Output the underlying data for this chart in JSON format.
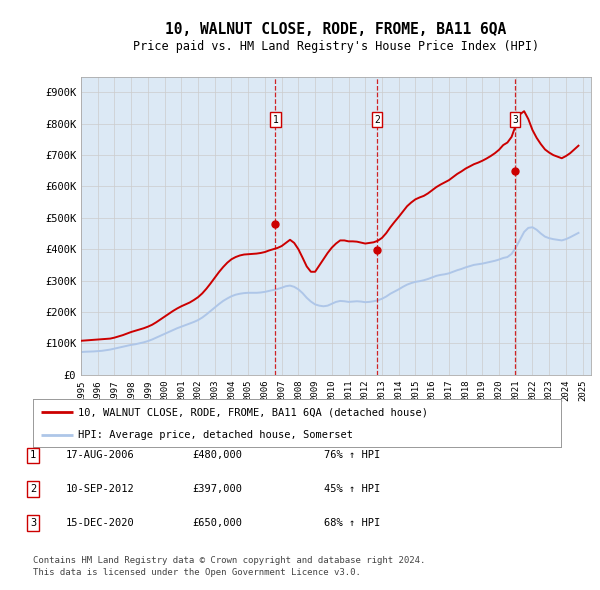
{
  "title": "10, WALNUT CLOSE, RODE, FROME, BA11 6QA",
  "subtitle": "Price paid vs. HM Land Registry's House Price Index (HPI)",
  "xlim_start": 1995.0,
  "xlim_end": 2025.5,
  "ylim_min": 0,
  "ylim_max": 950000,
  "yticks": [
    0,
    100000,
    200000,
    300000,
    400000,
    500000,
    600000,
    700000,
    800000,
    900000
  ],
  "ytick_labels": [
    "£0",
    "£100K",
    "£200K",
    "£300K",
    "£400K",
    "£500K",
    "£600K",
    "£700K",
    "£800K",
    "£900K"
  ],
  "xtick_years": [
    1995,
    1996,
    1997,
    1998,
    1999,
    2000,
    2001,
    2002,
    2003,
    2004,
    2005,
    2006,
    2007,
    2008,
    2009,
    2010,
    2011,
    2012,
    2013,
    2014,
    2015,
    2016,
    2017,
    2018,
    2019,
    2020,
    2021,
    2022,
    2023,
    2024,
    2025
  ],
  "hpi_color": "#aec6e8",
  "price_color": "#cc0000",
  "sale_marker_color": "#cc0000",
  "vline_color": "#cc0000",
  "grid_color": "#cccccc",
  "bg_color": "#dce9f5",
  "plot_bg": "#ffffff",
  "legend_box_color": "#cc0000",
  "sales": [
    {
      "label": "1",
      "year": 2006.625,
      "price": 480000,
      "date_str": "17-AUG-2006",
      "price_str": "£480,000",
      "pct_str": "76% ↑ HPI"
    },
    {
      "label": "2",
      "year": 2012.7,
      "price": 397000,
      "date_str": "10-SEP-2012",
      "price_str": "£397,000",
      "pct_str": "45% ↑ HPI"
    },
    {
      "label": "3",
      "year": 2020.96,
      "price": 650000,
      "date_str": "15-DEC-2020",
      "price_str": "£650,000",
      "pct_str": "68% ↑ HPI"
    }
  ],
  "legend1_label": "10, WALNUT CLOSE, RODE, FROME, BA11 6QA (detached house)",
  "legend2_label": "HPI: Average price, detached house, Somerset",
  "footer": "Contains HM Land Registry data © Crown copyright and database right 2024.\nThis data is licensed under the Open Government Licence v3.0.",
  "hpi_data_x": [
    1995.0,
    1995.25,
    1995.5,
    1995.75,
    1996.0,
    1996.25,
    1996.5,
    1996.75,
    1997.0,
    1997.25,
    1997.5,
    1997.75,
    1998.0,
    1998.25,
    1998.5,
    1998.75,
    1999.0,
    1999.25,
    1999.5,
    1999.75,
    2000.0,
    2000.25,
    2000.5,
    2000.75,
    2001.0,
    2001.25,
    2001.5,
    2001.75,
    2002.0,
    2002.25,
    2002.5,
    2002.75,
    2003.0,
    2003.25,
    2003.5,
    2003.75,
    2004.0,
    2004.25,
    2004.5,
    2004.75,
    2005.0,
    2005.25,
    2005.5,
    2005.75,
    2006.0,
    2006.25,
    2006.5,
    2006.75,
    2007.0,
    2007.25,
    2007.5,
    2007.75,
    2008.0,
    2008.25,
    2008.5,
    2008.75,
    2009.0,
    2009.25,
    2009.5,
    2009.75,
    2010.0,
    2010.25,
    2010.5,
    2010.75,
    2011.0,
    2011.25,
    2011.5,
    2011.75,
    2012.0,
    2012.25,
    2012.5,
    2012.75,
    2013.0,
    2013.25,
    2013.5,
    2013.75,
    2014.0,
    2014.25,
    2014.5,
    2014.75,
    2015.0,
    2015.25,
    2015.5,
    2015.75,
    2016.0,
    2016.25,
    2016.5,
    2016.75,
    2017.0,
    2017.25,
    2017.5,
    2017.75,
    2018.0,
    2018.25,
    2018.5,
    2018.75,
    2019.0,
    2019.25,
    2019.5,
    2019.75,
    2020.0,
    2020.25,
    2020.5,
    2020.75,
    2021.0,
    2021.25,
    2021.5,
    2021.75,
    2022.0,
    2022.25,
    2022.5,
    2022.75,
    2023.0,
    2023.25,
    2023.5,
    2023.75,
    2024.0,
    2024.25,
    2024.5,
    2024.75
  ],
  "hpi_data_y": [
    72000,
    73000,
    73500,
    74000,
    75000,
    76000,
    78000,
    80000,
    83000,
    86000,
    89000,
    92000,
    95000,
    97000,
    100000,
    103000,
    107000,
    112000,
    118000,
    124000,
    130000,
    136000,
    142000,
    148000,
    153000,
    158000,
    163000,
    168000,
    174000,
    182000,
    192000,
    203000,
    214000,
    225000,
    235000,
    243000,
    250000,
    255000,
    258000,
    260000,
    261000,
    261000,
    261000,
    262000,
    264000,
    267000,
    270000,
    273000,
    277000,
    282000,
    284000,
    280000,
    272000,
    260000,
    245000,
    233000,
    224000,
    220000,
    218000,
    220000,
    226000,
    232000,
    235000,
    234000,
    232000,
    233000,
    234000,
    233000,
    231000,
    232000,
    234000,
    237000,
    242000,
    249000,
    258000,
    265000,
    272000,
    280000,
    287000,
    292000,
    296000,
    298000,
    301000,
    305000,
    310000,
    315000,
    318000,
    320000,
    323000,
    328000,
    333000,
    337000,
    342000,
    346000,
    350000,
    352000,
    354000,
    357000,
    360000,
    363000,
    367000,
    372000,
    375000,
    385000,
    405000,
    430000,
    455000,
    468000,
    470000,
    462000,
    450000,
    440000,
    435000,
    432000,
    430000,
    428000,
    432000,
    438000,
    445000,
    452000
  ],
  "price_data_x": [
    1995.0,
    1995.25,
    1995.5,
    1995.75,
    1996.0,
    1996.25,
    1996.5,
    1996.75,
    1997.0,
    1997.25,
    1997.5,
    1997.75,
    1998.0,
    1998.25,
    1998.5,
    1998.75,
    1999.0,
    1999.25,
    1999.5,
    1999.75,
    2000.0,
    2000.25,
    2000.5,
    2000.75,
    2001.0,
    2001.25,
    2001.5,
    2001.75,
    2002.0,
    2002.25,
    2002.5,
    2002.75,
    2003.0,
    2003.25,
    2003.5,
    2003.75,
    2004.0,
    2004.25,
    2004.5,
    2004.75,
    2005.0,
    2005.25,
    2005.5,
    2005.75,
    2006.0,
    2006.25,
    2006.5,
    2006.75,
    2007.0,
    2007.25,
    2007.5,
    2007.75,
    2008.0,
    2008.25,
    2008.5,
    2008.75,
    2009.0,
    2009.25,
    2009.5,
    2009.75,
    2010.0,
    2010.25,
    2010.5,
    2010.75,
    2011.0,
    2011.25,
    2011.5,
    2011.75,
    2012.0,
    2012.25,
    2012.5,
    2012.75,
    2013.0,
    2013.25,
    2013.5,
    2013.75,
    2014.0,
    2014.25,
    2014.5,
    2014.75,
    2015.0,
    2015.25,
    2015.5,
    2015.75,
    2016.0,
    2016.25,
    2016.5,
    2016.75,
    2017.0,
    2017.25,
    2017.5,
    2017.75,
    2018.0,
    2018.25,
    2018.5,
    2018.75,
    2019.0,
    2019.25,
    2019.5,
    2019.75,
    2020.0,
    2020.25,
    2020.5,
    2020.75,
    2021.0,
    2021.25,
    2021.5,
    2021.75,
    2022.0,
    2022.25,
    2022.5,
    2022.75,
    2023.0,
    2023.25,
    2023.5,
    2023.75,
    2024.0,
    2024.25,
    2024.5,
    2024.75
  ],
  "price_data_y": [
    108000,
    109000,
    110000,
    111000,
    112000,
    113000,
    114000,
    115000,
    118000,
    122000,
    126000,
    131000,
    136000,
    140000,
    144000,
    148000,
    153000,
    159000,
    167000,
    176000,
    185000,
    194000,
    203000,
    211000,
    218000,
    224000,
    230000,
    238000,
    247000,
    259000,
    274000,
    291000,
    309000,
    327000,
    343000,
    357000,
    368000,
    375000,
    380000,
    383000,
    384000,
    385000,
    386000,
    388000,
    391000,
    396000,
    400000,
    404000,
    410000,
    420000,
    430000,
    420000,
    400000,
    373000,
    345000,
    328000,
    328000,
    348000,
    368000,
    388000,
    405000,
    418000,
    428000,
    428000,
    425000,
    425000,
    424000,
    421000,
    418000,
    420000,
    422000,
    427000,
    436000,
    451000,
    470000,
    487000,
    503000,
    520000,
    537000,
    549000,
    559000,
    565000,
    570000,
    578000,
    588000,
    598000,
    606000,
    613000,
    620000,
    630000,
    640000,
    648000,
    657000,
    664000,
    671000,
    676000,
    682000,
    689000,
    697000,
    706000,
    717000,
    732000,
    740000,
    758000,
    795000,
    830000,
    840000,
    815000,
    780000,
    755000,
    735000,
    718000,
    708000,
    700000,
    695000,
    690000,
    697000,
    706000,
    718000,
    730000
  ]
}
